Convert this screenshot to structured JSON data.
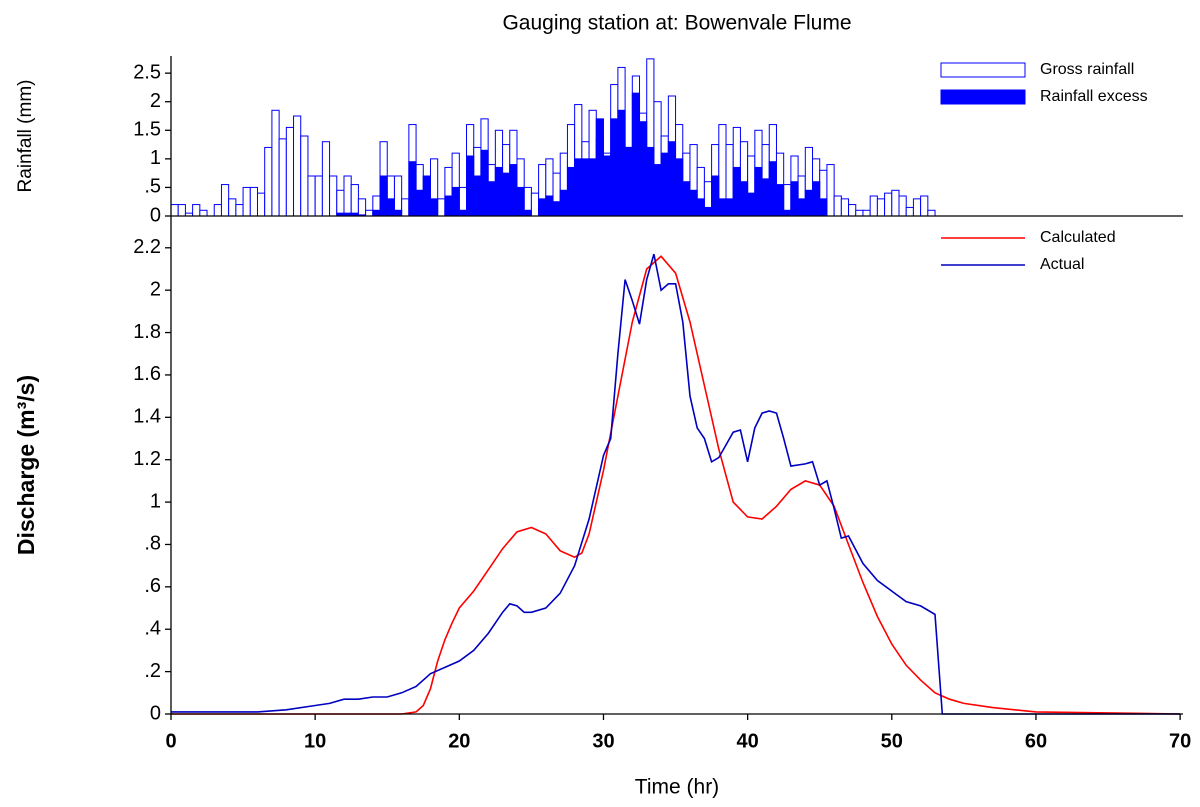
{
  "chart_data": [
    {
      "type": "bar",
      "title": "Gauging station at: Bowenvale Flume",
      "ylabel": "Rainfall (mm)",
      "xlim": [
        0,
        70.2
      ],
      "ylim": [
        0,
        2.8
      ],
      "yticks": [
        0,
        {
          "value": 0.5,
          "label": ".5"
        },
        1,
        1.5,
        2,
        2.5
      ],
      "legend": "upper right",
      "x": [
        0,
        0.5,
        1,
        1.5,
        2,
        2.5,
        3,
        3.5,
        4,
        4.5,
        5,
        5.5,
        6,
        6.5,
        7,
        7.5,
        8,
        8.5,
        9,
        9.5,
        10,
        10.5,
        11,
        11.5,
        12,
        12.5,
        13,
        13.5,
        14,
        14.5,
        15,
        15.5,
        16,
        16.5,
        17,
        17.5,
        18,
        18.5,
        19,
        19.5,
        20,
        20.5,
        21,
        21.5,
        22,
        22.5,
        23,
        23.5,
        24,
        24.5,
        25,
        25.5,
        26,
        26.5,
        27,
        27.5,
        28,
        28.5,
        29,
        29.5,
        30,
        30.5,
        31,
        31.5,
        32,
        32.5,
        33,
        33.5,
        34,
        34.5,
        35,
        35.5,
        36,
        36.5,
        37,
        37.5,
        38,
        38.5,
        39,
        39.5,
        40,
        40.5,
        41,
        41.5,
        42,
        42.5,
        43,
        43.5,
        44,
        44.5,
        45,
        45.5,
        46,
        46.5,
        47,
        47.5,
        48,
        48.5,
        49,
        49.5,
        50,
        50.5,
        51,
        51.5,
        52,
        52.5
      ],
      "series": [
        {
          "name": "Gross rainfall",
          "color": "#0000ff",
          "fill": "#ffffff",
          "values": [
            0.2,
            0.2,
            0.05,
            0.2,
            0.1,
            0,
            0.2,
            0.55,
            0.3,
            0.2,
            0.5,
            0.5,
            0.4,
            1.2,
            1.85,
            1.35,
            1.55,
            1.75,
            1.4,
            0.7,
            0.7,
            1.3,
            0.7,
            0.45,
            0.7,
            0.55,
            0.3,
            0.1,
            0.35,
            1.3,
            0.7,
            0.7,
            0.3,
            1.6,
            0.9,
            0.7,
            1.0,
            0.3,
            0.85,
            1.1,
            0.5,
            1.6,
            1.2,
            1.7,
            0.9,
            1.5,
            1.25,
            1.5,
            1.0,
            0.5,
            0.4,
            0.9,
            1.0,
            0.75,
            1.1,
            1.6,
            1.95,
            1.3,
            1.85,
            1.35,
            1.1,
            2.3,
            2.6,
            1.2,
            2.45,
            1.8,
            2.75,
            2.0,
            1.4,
            2.1,
            1.6,
            1.1,
            1.25,
            0.85,
            0.6,
            1.25,
            1.6,
            1.25,
            1.55,
            1.3,
            1.05,
            1.5,
            1.25,
            1.6,
            1.1,
            0.55,
            1.05,
            0.7,
            1.2,
            1.0,
            0.8,
            0.9,
            0.35,
            0.3,
            0.2,
            0.1,
            0.1,
            0.35,
            0.3,
            0.4,
            0.45,
            0.35,
            0.15,
            0.3,
            0.35,
            0.1
          ]
        },
        {
          "name": "Rainfall excess",
          "color": "#0000ff",
          "fill": "#0000ff",
          "values": [
            0,
            0,
            0,
            0,
            0,
            0,
            0,
            0,
            0,
            0,
            0,
            0,
            0,
            0,
            0,
            0,
            0,
            0,
            0,
            0,
            0,
            0,
            0,
            0.05,
            0.05,
            0.05,
            0.02,
            0,
            0.1,
            0.7,
            0.3,
            0.1,
            0,
            0.95,
            0.45,
            0.7,
            0.3,
            0,
            0.35,
            0.5,
            0.1,
            1.05,
            0.7,
            1.15,
            0.6,
            0.85,
            0.75,
            0.9,
            0.5,
            0.1,
            0,
            0.3,
            0.35,
            0.25,
            0.45,
            0.85,
            1.0,
            1.0,
            1.0,
            1.7,
            1.05,
            1.7,
            1.85,
            1.2,
            2.15,
            1.65,
            1.2,
            0.9,
            1.1,
            1.3,
            1.0,
            0.6,
            0.45,
            0.3,
            0.15,
            0.7,
            0.3,
            0.3,
            0.85,
            0.6,
            0.4,
            0.85,
            0.65,
            0.95,
            0.55,
            0.1,
            0.6,
            0.3,
            0.45,
            0.6,
            0.3,
            0,
            0,
            0,
            0,
            0,
            0,
            0,
            0,
            0,
            0,
            0,
            0,
            0,
            0,
            0
          ]
        }
      ]
    },
    {
      "type": "line",
      "ylabel": "Discharge (m³/s)",
      "xlabel": "Time (hr)",
      "xlim": [
        0,
        70.2
      ],
      "ylim": [
        0,
        2.35
      ],
      "xticks": [
        0,
        10,
        20,
        30,
        40,
        50,
        60,
        70
      ],
      "yticks": [
        0,
        {
          "value": 0.2,
          "label": ".2"
        },
        {
          "value": 0.4,
          "label": ".4"
        },
        {
          "value": 0.6,
          "label": ".6"
        },
        {
          "value": 0.8,
          "label": ".8"
        },
        1,
        1.2,
        1.4,
        1.6,
        1.8,
        2,
        2.2
      ],
      "legend": "upper right",
      "series": [
        {
          "name": "Calculated",
          "color": "#ff0000",
          "x": [
            0,
            16,
            17,
            17.5,
            18,
            18.5,
            19,
            19.5,
            20,
            21,
            22,
            23,
            24,
            25,
            26,
            27,
            28,
            28.5,
            29,
            30,
            31,
            32,
            33,
            34,
            35,
            36,
            37,
            38,
            39,
            40,
            41,
            42,
            43,
            44,
            45,
            46,
            47,
            48,
            49,
            50,
            51,
            52,
            53,
            54,
            55,
            57,
            60,
            65,
            70
          ],
          "values": [
            0,
            0,
            0.01,
            0.04,
            0.12,
            0.25,
            0.35,
            0.43,
            0.5,
            0.58,
            0.68,
            0.78,
            0.86,
            0.88,
            0.85,
            0.77,
            0.74,
            0.76,
            0.85,
            1.15,
            1.5,
            1.85,
            2.1,
            2.16,
            2.08,
            1.85,
            1.55,
            1.25,
            1.0,
            0.93,
            0.92,
            0.98,
            1.06,
            1.1,
            1.08,
            0.98,
            0.8,
            0.62,
            0.46,
            0.33,
            0.23,
            0.16,
            0.1,
            0.07,
            0.05,
            0.03,
            0.01,
            0.005,
            0
          ]
        },
        {
          "name": "Actual",
          "color": "#0000c0",
          "x": [
            0,
            6,
            8,
            10,
            11,
            12,
            13,
            14,
            15,
            16,
            17,
            18,
            19,
            20,
            21,
            22,
            23,
            23.5,
            24,
            24.5,
            25,
            26,
            27,
            28,
            29,
            30,
            30.5,
            31,
            31.5,
            32,
            32.5,
            33,
            33.5,
            34,
            34.5,
            35,
            35.5,
            36,
            36.5,
            37,
            37.5,
            38,
            39,
            39.5,
            40,
            40.5,
            41,
            41.5,
            42,
            42.5,
            43,
            44,
            44.5,
            45,
            45.5,
            46,
            46.5,
            47,
            48,
            49,
            50,
            51,
            52,
            53,
            53.5,
            70
          ],
          "values": [
            0.01,
            0.01,
            0.02,
            0.04,
            0.05,
            0.07,
            0.07,
            0.08,
            0.08,
            0.1,
            0.13,
            0.19,
            0.22,
            0.25,
            0.3,
            0.38,
            0.48,
            0.52,
            0.51,
            0.48,
            0.48,
            0.5,
            0.57,
            0.7,
            0.92,
            1.22,
            1.3,
            1.7,
            2.05,
            1.95,
            1.84,
            2.05,
            2.17,
            2.0,
            2.03,
            2.03,
            1.85,
            1.5,
            1.35,
            1.3,
            1.19,
            1.21,
            1.33,
            1.34,
            1.19,
            1.35,
            1.42,
            1.43,
            1.42,
            1.3,
            1.17,
            1.18,
            1.19,
            1.08,
            1.1,
            0.97,
            0.83,
            0.84,
            0.71,
            0.63,
            0.58,
            0.53,
            0.51,
            0.47,
            0,
            0
          ]
        }
      ]
    }
  ]
}
